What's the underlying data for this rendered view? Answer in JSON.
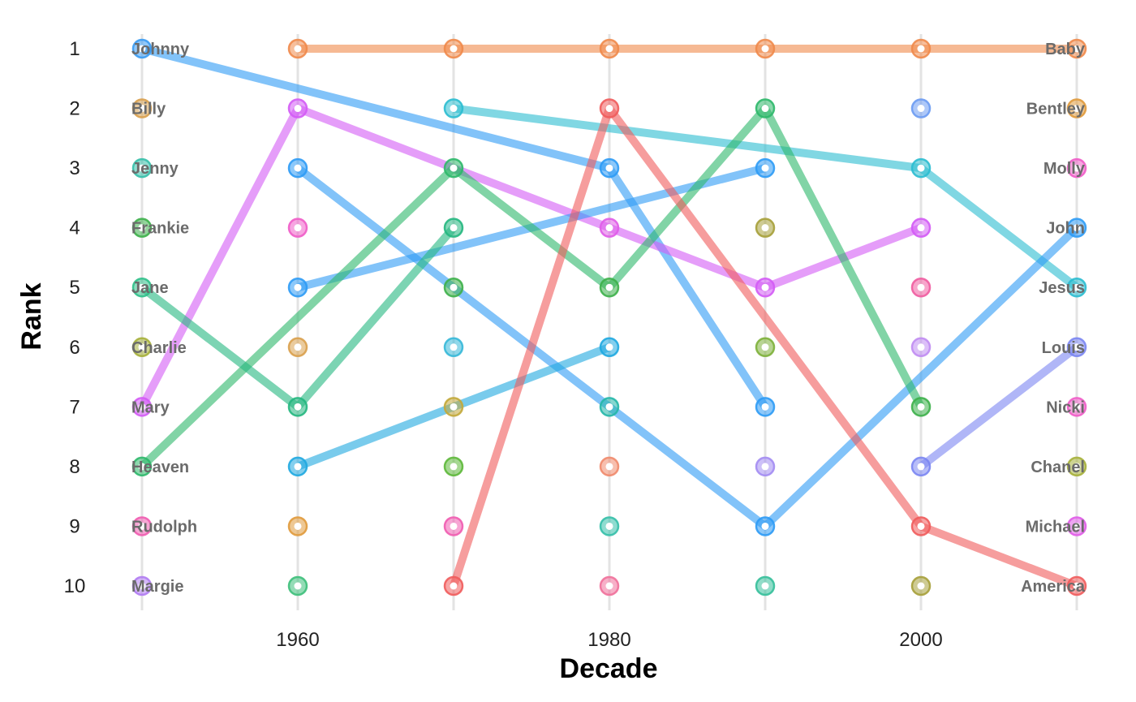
{
  "chart_data": {
    "type": "line",
    "title": "",
    "xlabel": "Decade",
    "ylabel": "Rank",
    "x_ticks": [
      1960,
      1980,
      2000
    ],
    "y_ticks": [
      1,
      2,
      3,
      4,
      5,
      6,
      7,
      8,
      9,
      10
    ],
    "xlim": [
      1950,
      2010
    ],
    "ylim": [
      10,
      1
    ],
    "y_reversed": true,
    "grid": "vertical lines at each decade",
    "decades": [
      1950,
      1960,
      1970,
      1980,
      1990,
      2000,
      2010
    ],
    "series": [
      {
        "color": "#F08A4B",
        "points": [
          [
            1960,
            1
          ],
          [
            1970,
            1
          ],
          [
            1980,
            1
          ],
          [
            1990,
            1
          ],
          [
            2000,
            1
          ],
          [
            2010,
            1
          ]
        ]
      },
      {
        "color": "#2E9BF5",
        "points": [
          [
            1950,
            1
          ],
          [
            1980,
            3
          ],
          [
            1990,
            7
          ]
        ]
      },
      {
        "color": "#2BBDD0",
        "points": [
          [
            1970,
            2
          ],
          [
            2000,
            3
          ],
          [
            2010,
            5
          ]
        ]
      },
      {
        "color": "#D35BF5",
        "points": [
          [
            1950,
            7
          ],
          [
            1960,
            2
          ],
          [
            1970,
            3
          ],
          [
            1980,
            4
          ],
          [
            1990,
            5
          ],
          [
            2000,
            4
          ]
        ]
      },
      {
        "color": "#2E9BF5",
        "points": [
          [
            1960,
            3
          ],
          [
            1970,
            5
          ],
          [
            1980,
            7
          ],
          [
            1990,
            9
          ],
          [
            2010,
            4
          ]
        ]
      },
      {
        "color": "#2E9BF5",
        "points": [
          [
            1960,
            5
          ],
          [
            1990,
            3
          ]
        ]
      },
      {
        "color": "#2DB86A",
        "points": [
          [
            1950,
            8
          ],
          [
            1970,
            3
          ],
          [
            1980,
            5
          ],
          [
            1990,
            2
          ],
          [
            2000,
            7
          ]
        ]
      },
      {
        "color": "#25B780",
        "points": [
          [
            1950,
            5
          ],
          [
            1960,
            7
          ],
          [
            1970,
            4
          ]
        ]
      },
      {
        "color": "#1FA8E0",
        "points": [
          [
            1960,
            8
          ],
          [
            1970,
            7
          ],
          [
            1980,
            6
          ]
        ]
      },
      {
        "color": "#F05C5C",
        "points": [
          [
            1970,
            10
          ],
          [
            1980,
            2
          ],
          [
            2000,
            9
          ],
          [
            2010,
            10
          ]
        ]
      },
      {
        "color": "#7B86F2",
        "points": [
          [
            2000,
            8
          ],
          [
            2010,
            6
          ]
        ]
      }
    ],
    "points": [
      {
        "decade": 1950,
        "rank": 1,
        "color": "#3A9BF2"
      },
      {
        "decade": 1950,
        "rank": 2,
        "color": "#D9A04C"
      },
      {
        "decade": 1950,
        "rank": 3,
        "color": "#35BFA9"
      },
      {
        "decade": 1950,
        "rank": 4,
        "color": "#3DB04A"
      },
      {
        "decade": 1950,
        "rank": 5,
        "color": "#2FC08A"
      },
      {
        "decade": 1950,
        "rank": 6,
        "color": "#A6B03A"
      },
      {
        "decade": 1950,
        "rank": 7,
        "color": "#D35BF5"
      },
      {
        "decade": 1950,
        "rank": 8,
        "color": "#2DB86A"
      },
      {
        "decade": 1950,
        "rank": 9,
        "color": "#F05CB0"
      },
      {
        "decade": 1950,
        "rank": 10,
        "color": "#B07BF2"
      },
      {
        "decade": 1960,
        "rank": 1,
        "color": "#F08A4B"
      },
      {
        "decade": 1960,
        "rank": 2,
        "color": "#D35BF5"
      },
      {
        "decade": 1960,
        "rank": 3,
        "color": "#2E9BF5"
      },
      {
        "decade": 1960,
        "rank": 4,
        "color": "#F05CC8"
      },
      {
        "decade": 1960,
        "rank": 5,
        "color": "#2E9BF5"
      },
      {
        "decade": 1960,
        "rank": 6,
        "color": "#D9A04C"
      },
      {
        "decade": 1960,
        "rank": 7,
        "color": "#25B780"
      },
      {
        "decade": 1960,
        "rank": 8,
        "color": "#1FA8E0"
      },
      {
        "decade": 1960,
        "rank": 9,
        "color": "#E09A3C"
      },
      {
        "decade": 1960,
        "rank": 10,
        "color": "#3DBF7A"
      },
      {
        "decade": 1970,
        "rank": 1,
        "color": "#F08A4B"
      },
      {
        "decade": 1970,
        "rank": 2,
        "color": "#2BBDD0"
      },
      {
        "decade": 1970,
        "rank": 3,
        "color": "#2DB86A"
      },
      {
        "decade": 1970,
        "rank": 4,
        "color": "#25B780"
      },
      {
        "decade": 1970,
        "rank": 5,
        "color": "#3DB04A"
      },
      {
        "decade": 1970,
        "rank": 6,
        "color": "#36B8D8"
      },
      {
        "decade": 1970,
        "rank": 7,
        "color": "#C2A83A"
      },
      {
        "decade": 1970,
        "rank": 8,
        "color": "#5DB83A"
      },
      {
        "decade": 1970,
        "rank": 9,
        "color": "#F05CB0"
      },
      {
        "decade": 1970,
        "rank": 10,
        "color": "#F05C5C"
      },
      {
        "decade": 1980,
        "rank": 1,
        "color": "#F08A4B"
      },
      {
        "decade": 1980,
        "rank": 2,
        "color": "#F05C5C"
      },
      {
        "decade": 1980,
        "rank": 3,
        "color": "#2E9BF5"
      },
      {
        "decade": 1980,
        "rank": 4,
        "color": "#E05CE8"
      },
      {
        "decade": 1980,
        "rank": 5,
        "color": "#3DB04A"
      },
      {
        "decade": 1980,
        "rank": 6,
        "color": "#1FA8E0"
      },
      {
        "decade": 1980,
        "rank": 7,
        "color": "#25B7A8"
      },
      {
        "decade": 1980,
        "rank": 8,
        "color": "#F08A6B"
      },
      {
        "decade": 1980,
        "rank": 9,
        "color": "#35BFA9"
      },
      {
        "decade": 1980,
        "rank": 10,
        "color": "#F0709A"
      },
      {
        "decade": 1990,
        "rank": 1,
        "color": "#F08A4B"
      },
      {
        "decade": 1990,
        "rank": 2,
        "color": "#2DB86A"
      },
      {
        "decade": 1990,
        "rank": 3,
        "color": "#2E9BF5"
      },
      {
        "decade": 1990,
        "rank": 4,
        "color": "#A6A03A"
      },
      {
        "decade": 1990,
        "rank": 5,
        "color": "#D35BF5"
      },
      {
        "decade": 1990,
        "rank": 6,
        "color": "#7DB03A"
      },
      {
        "decade": 1990,
        "rank": 7,
        "color": "#2E9BF5"
      },
      {
        "decade": 1990,
        "rank": 8,
        "color": "#A38CF2"
      },
      {
        "decade": 1990,
        "rank": 9,
        "color": "#2E9BF5"
      },
      {
        "decade": 1990,
        "rank": 10,
        "color": "#35BF9A"
      },
      {
        "decade": 2000,
        "rank": 1,
        "color": "#F08A4B"
      },
      {
        "decade": 2000,
        "rank": 2,
        "color": "#6B9BF2"
      },
      {
        "decade": 2000,
        "rank": 3,
        "color": "#2BBDD0"
      },
      {
        "decade": 2000,
        "rank": 4,
        "color": "#D35BF5"
      },
      {
        "decade": 2000,
        "rank": 5,
        "color": "#F05CA0"
      },
      {
        "decade": 2000,
        "rank": 6,
        "color": "#C08CF2"
      },
      {
        "decade": 2000,
        "rank": 7,
        "color": "#3DB04A"
      },
      {
        "decade": 2000,
        "rank": 8,
        "color": "#7B86F2"
      },
      {
        "decade": 2000,
        "rank": 9,
        "color": "#F05C5C"
      },
      {
        "decade": 2000,
        "rank": 10,
        "color": "#A6A03A"
      },
      {
        "decade": 2010,
        "rank": 1,
        "color": "#F08A4B"
      },
      {
        "decade": 2010,
        "rank": 2,
        "color": "#E09A3C"
      },
      {
        "decade": 2010,
        "rank": 3,
        "color": "#F05CC8"
      },
      {
        "decade": 2010,
        "rank": 4,
        "color": "#2E9BF5"
      },
      {
        "decade": 2010,
        "rank": 5,
        "color": "#2BBDD0"
      },
      {
        "decade": 2010,
        "rank": 6,
        "color": "#7B86F2"
      },
      {
        "decade": 2010,
        "rank": 7,
        "color": "#F05CC8"
      },
      {
        "decade": 2010,
        "rank": 8,
        "color": "#A6B03A"
      },
      {
        "decade": 2010,
        "rank": 9,
        "color": "#E05CE8"
      },
      {
        "decade": 2010,
        "rank": 10,
        "color": "#F05C5C"
      }
    ],
    "labels_1950": [
      "Johnny",
      "Billy",
      "Jenny",
      "Frankie",
      "Jane",
      "Charlie",
      "Mary",
      "Heaven",
      "Rudolph",
      "Margie"
    ],
    "labels_2010": [
      "Baby",
      "Bentley",
      "Molly",
      "John",
      "Jesus",
      "Louis",
      "Nicki",
      "Chanel",
      "Michael",
      "America"
    ]
  }
}
